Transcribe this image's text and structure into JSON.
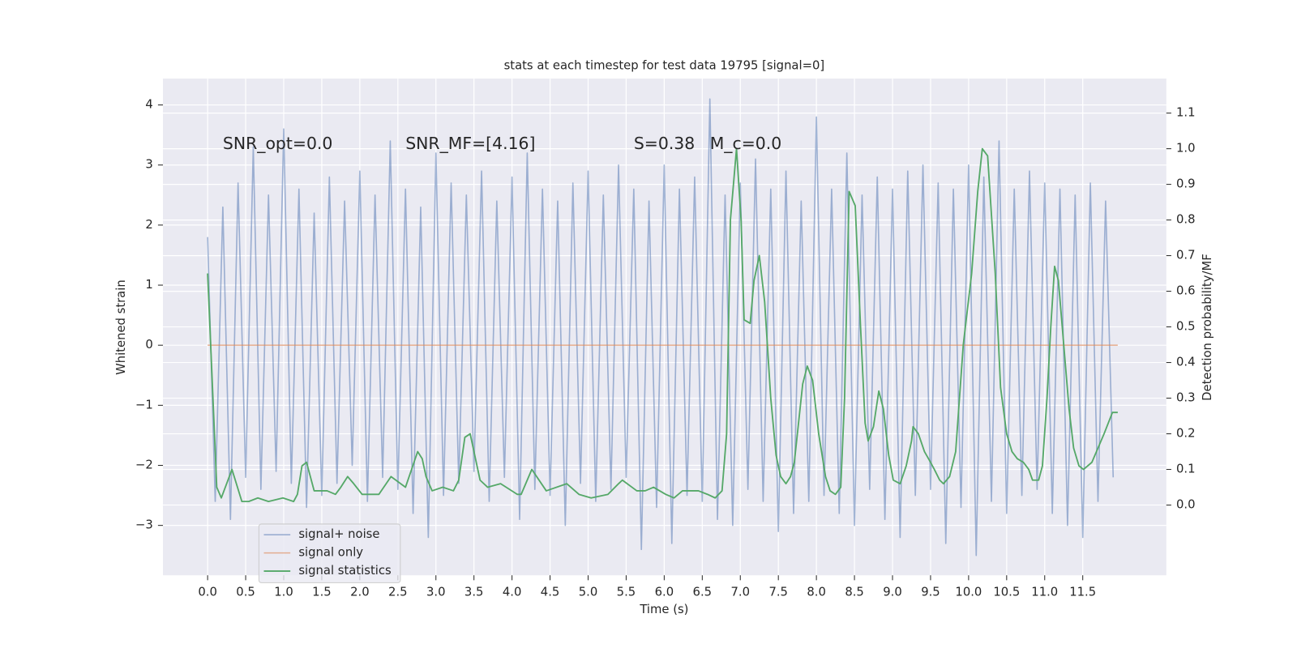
{
  "chart_data": {
    "type": "line",
    "title": "stats at each timestep for test data 19795 [signal=0]",
    "xlabel": "Time (s)",
    "ylabel": "Whitened strain",
    "y2label": "Detection probability/MF",
    "annotations": [
      {
        "text": "SNR_opt=0.0",
        "x": 0.2,
        "y": 3.35
      },
      {
        "text": "SNR_MF=[4.16]",
        "x": 2.6,
        "y": 3.35
      },
      {
        "text": "S=0.38",
        "x": 5.6,
        "y": 3.35
      },
      {
        "text": "M_c=0.0",
        "x": 6.6,
        "y": 3.35
      }
    ],
    "xlim": [
      -0.587,
      12.598
    ],
    "ylim": [
      -3.83,
      4.44
    ],
    "y2lim": [
      -0.197,
      1.197
    ],
    "xticks": [
      {
        "value": 0,
        "label": "0.0"
      },
      0.5,
      {
        "value": 1,
        "label": "1.0"
      },
      1.5,
      {
        "value": 2,
        "label": "2.0"
      },
      2.5,
      {
        "value": 3,
        "label": "3.0"
      },
      3.5,
      {
        "value": 4,
        "label": "4.0"
      },
      4.5,
      {
        "value": 5,
        "label": "5.0"
      },
      5.5,
      {
        "value": 6,
        "label": "6.0"
      },
      6.5,
      {
        "value": 7,
        "label": "7.0"
      },
      7.5,
      {
        "value": 8,
        "label": "8.0"
      },
      8.5,
      {
        "value": 9,
        "label": "9.0"
      },
      9.5,
      {
        "value": 10,
        "label": "10.0"
      },
      10.5,
      {
        "value": 11,
        "label": "11.0"
      },
      11.5
    ],
    "yticks": [
      {
        "value": -3,
        "label": "−3"
      },
      {
        "value": -2,
        "label": "−2"
      },
      {
        "value": -1,
        "label": "−1"
      },
      0,
      1,
      2,
      3,
      4
    ],
    "y2ticks": [
      {
        "value": 0,
        "label": "0.0"
      },
      0.1,
      0.2,
      0.3,
      0.4,
      0.5,
      0.6,
      0.7,
      0.8,
      0.9,
      {
        "value": 1,
        "label": "1.0"
      },
      1.1
    ],
    "grid": true,
    "legend_loc": "lower left",
    "series": [
      {
        "name": "signal+ noise",
        "color": "#4c72b0",
        "axis": "y",
        "x": [
          0,
          0.1,
          0.2,
          0.3,
          0.4,
          0.5,
          0.6,
          0.7,
          0.8,
          0.9,
          1,
          1.1,
          1.2,
          1.3,
          1.4,
          1.5,
          1.6,
          1.7,
          1.8,
          1.9,
          2,
          2.1,
          2.2,
          2.3,
          2.4,
          2.5,
          2.6,
          2.7,
          2.8,
          2.9,
          3,
          3.1,
          3.2,
          3.3,
          3.4,
          3.5,
          3.6,
          3.7,
          3.8,
          3.9,
          4,
          4.1,
          4.2,
          4.3,
          4.4,
          4.5,
          4.6,
          4.7,
          4.8,
          4.9,
          5,
          5.1,
          5.2,
          5.3,
          5.4,
          5.5,
          5.6,
          5.7,
          5.8,
          5.9,
          6,
          6.1,
          6.2,
          6.3,
          6.4,
          6.5,
          6.6,
          6.7,
          6.8,
          6.9,
          7,
          7.1,
          7.2,
          7.3,
          7.4,
          7.5,
          7.6,
          7.7,
          7.8,
          7.9,
          8,
          8.1,
          8.2,
          8.3,
          8.4,
          8.5,
          8.6,
          8.7,
          8.8,
          8.9,
          9,
          9.1,
          9.2,
          9.3,
          9.4,
          9.5,
          9.6,
          9.7,
          9.8,
          9.9,
          10,
          10.1,
          10.2,
          10.3,
          10.4,
          10.5,
          10.6,
          10.7,
          10.8,
          10.9,
          11,
          11.1,
          11.2,
          11.3,
          11.4,
          11.5,
          11.6,
          11.7,
          11.8,
          11.9
        ],
        "values": [
          1.8,
          -2.6,
          2.3,
          -2.9,
          2.7,
          -2.2,
          3.3,
          -2.4,
          2.5,
          -2.1,
          3.6,
          -2.3,
          2.6,
          -2.7,
          2.2,
          -2.5,
          2.8,
          -2.3,
          2.4,
          -2.0,
          2.9,
          -2.6,
          2.5,
          -2.2,
          3.4,
          -2.4,
          2.6,
          -2.8,
          2.3,
          -3.2,
          3.2,
          -2.5,
          2.7,
          -2.3,
          2.5,
          -2.1,
          2.9,
          -2.6,
          2.4,
          -2.2,
          2.8,
          -2.9,
          3.2,
          -2.4,
          2.6,
          -2.5,
          2.4,
          -3.0,
          2.7,
          -2.3,
          2.9,
          -2.6,
          2.5,
          -2.4,
          3.0,
          -2.2,
          2.6,
          -3.4,
          2.4,
          -2.7,
          3.0,
          -3.3,
          2.6,
          -2.5,
          2.8,
          -2.6,
          4.1,
          -2.9,
          2.5,
          -3.0,
          2.7,
          -2.4,
          3.1,
          -2.6,
          2.6,
          -3.1,
          2.9,
          -2.8,
          2.4,
          -2.6,
          3.8,
          -2.5,
          2.6,
          -2.8,
          3.2,
          -3.0,
          2.5,
          -2.4,
          2.8,
          -2.9,
          2.6,
          -3.2,
          2.9,
          -2.5,
          3.0,
          -2.4,
          2.7,
          -3.3,
          2.6,
          -2.7,
          3.0,
          -3.5,
          2.8,
          -2.6,
          3.4,
          -2.8,
          2.6,
          -2.5,
          2.9,
          -2.4,
          2.7,
          -2.8,
          2.6,
          -3.0,
          2.5,
          -3.2,
          2.7,
          -2.6,
          2.4,
          -2.2
        ]
      },
      {
        "name": "signal only",
        "color": "#dd8452",
        "axis": "y",
        "x": [
          0,
          11.96
        ],
        "values": [
          0,
          0
        ]
      },
      {
        "name": "signal statistics",
        "color": "#55a868",
        "axis": "y2",
        "x": [
          0,
          0.12,
          0.18,
          0.32,
          0.45,
          0.54,
          0.66,
          0.8,
          0.99,
          1.13,
          1.18,
          1.24,
          1.3,
          1.4,
          1.57,
          1.68,
          1.75,
          1.84,
          1.92,
          2.03,
          2.25,
          2.41,
          2.6,
          2.76,
          2.82,
          2.87,
          2.95,
          3.09,
          3.23,
          3.3,
          3.38,
          3.45,
          3.58,
          3.68,
          3.85,
          4.07,
          4.12,
          4.26,
          4.45,
          4.72,
          4.88,
          5.04,
          5.26,
          5.4,
          5.45,
          5.64,
          5.75,
          5.86,
          6.02,
          6.13,
          6.24,
          6.45,
          6.57,
          6.67,
          6.76,
          6.82,
          6.87,
          6.95,
          7.01,
          7.05,
          7.13,
          7.18,
          7.25,
          7.32,
          7.4,
          7.47,
          7.53,
          7.6,
          7.66,
          7.71,
          7.82,
          7.88,
          7.95,
          8.03,
          8.12,
          8.18,
          8.25,
          8.32,
          8.37,
          8.43,
          8.51,
          8.58,
          8.64,
          8.68,
          8.75,
          8.82,
          8.88,
          8.95,
          9.01,
          9.1,
          9.18,
          9.25,
          9.27,
          9.34,
          9.42,
          9.5,
          9.55,
          9.62,
          9.67,
          9.75,
          9.83,
          9.93,
          10.04,
          10.12,
          10.18,
          10.25,
          10.35,
          10.42,
          10.5,
          10.57,
          10.64,
          10.72,
          10.79,
          10.84,
          10.92,
          10.97,
          11.03,
          11.08,
          11.13,
          11.18,
          11.25,
          11.32,
          11.38,
          11.45,
          11.51,
          11.62,
          11.78,
          11.89,
          11.96
        ],
        "values": [
          0.65,
          0.05,
          0.02,
          0.1,
          0.01,
          0.01,
          0.02,
          0.01,
          0.02,
          0.01,
          0.03,
          0.11,
          0.12,
          0.04,
          0.04,
          0.03,
          0.05,
          0.08,
          0.06,
          0.03,
          0.03,
          0.08,
          0.05,
          0.15,
          0.13,
          0.08,
          0.04,
          0.05,
          0.04,
          0.07,
          0.19,
          0.2,
          0.07,
          0.05,
          0.06,
          0.03,
          0.03,
          0.1,
          0.04,
          0.06,
          0.03,
          0.02,
          0.03,
          0.06,
          0.07,
          0.04,
          0.04,
          0.05,
          0.03,
          0.02,
          0.04,
          0.04,
          0.03,
          0.02,
          0.04,
          0.2,
          0.8,
          1.0,
          0.8,
          0.52,
          0.51,
          0.63,
          0.7,
          0.57,
          0.3,
          0.14,
          0.08,
          0.06,
          0.08,
          0.12,
          0.34,
          0.39,
          0.35,
          0.2,
          0.08,
          0.04,
          0.03,
          0.05,
          0.3,
          0.88,
          0.84,
          0.5,
          0.23,
          0.18,
          0.22,
          0.32,
          0.27,
          0.14,
          0.07,
          0.06,
          0.11,
          0.18,
          0.22,
          0.2,
          0.15,
          0.12,
          0.1,
          0.07,
          0.06,
          0.08,
          0.15,
          0.45,
          0.65,
          0.88,
          1.0,
          0.98,
          0.65,
          0.33,
          0.2,
          0.15,
          0.13,
          0.12,
          0.1,
          0.07,
          0.07,
          0.11,
          0.3,
          0.5,
          0.67,
          0.63,
          0.45,
          0.27,
          0.16,
          0.11,
          0.1,
          0.12,
          0.2,
          0.26,
          0.26
        ]
      }
    ]
  }
}
